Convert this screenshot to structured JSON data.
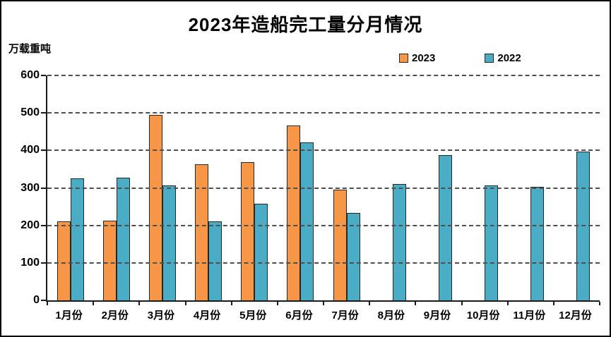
{
  "chart_data": {
    "type": "bar",
    "title": "2023年造船完工量分月情况",
    "ylabel": "万载重吨",
    "xlabel": "",
    "categories": [
      "1月份",
      "2月份",
      "3月份",
      "4月份",
      "5月份",
      "6月份",
      "7月份",
      "8月份",
      "9月份",
      "10月份",
      "11月份",
      "12月份"
    ],
    "series": [
      {
        "name": "2023",
        "color": "#F79646",
        "values": [
          211,
          213,
          495,
          363,
          368,
          466,
          295,
          null,
          null,
          null,
          null,
          null
        ]
      },
      {
        "name": "2022",
        "color": "#4BACC6",
        "values": [
          326,
          328,
          307,
          211,
          257,
          421,
          234,
          310,
          387,
          306,
          302,
          396
        ]
      }
    ],
    "ylim": [
      0,
      600
    ],
    "yticks": [
      0,
      100,
      200,
      300,
      400,
      500,
      600
    ],
    "grid": "horizontal-dashed",
    "legend_position": "top-right"
  }
}
